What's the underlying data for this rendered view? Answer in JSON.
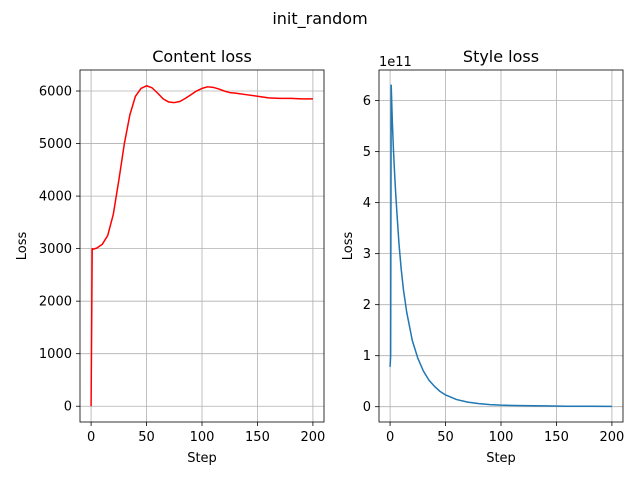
{
  "figure": {
    "suptitle": "init_random"
  },
  "chart_data": [
    {
      "type": "line",
      "title": "Content loss",
      "xlabel": "Step",
      "ylabel": "Loss",
      "xlim": [
        -10,
        210
      ],
      "ylim": [
        -300,
        6400
      ],
      "xticks": [
        0,
        50,
        100,
        150,
        200
      ],
      "yticks": [
        0,
        1000,
        2000,
        3000,
        4000,
        5000,
        6000
      ],
      "grid": true,
      "offset_text": "",
      "series": [
        {
          "color": "#ff0000",
          "x": [
            0,
            1,
            2,
            5,
            10,
            15,
            20,
            25,
            30,
            35,
            40,
            45,
            50,
            55,
            60,
            65,
            70,
            75,
            80,
            85,
            90,
            95,
            100,
            105,
            110,
            115,
            120,
            125,
            130,
            140,
            150,
            160,
            170,
            180,
            190,
            200
          ],
          "y": [
            0,
            3000,
            2990,
            3010,
            3080,
            3250,
            3650,
            4300,
            5000,
            5550,
            5900,
            6050,
            6100,
            6060,
            5960,
            5850,
            5790,
            5780,
            5800,
            5860,
            5930,
            6000,
            6050,
            6080,
            6070,
            6040,
            6000,
            5970,
            5960,
            5930,
            5900,
            5870,
            5860,
            5860,
            5850,
            5850
          ]
        }
      ]
    },
    {
      "type": "line",
      "title": "Style loss",
      "xlabel": "Step",
      "ylabel": "Loss",
      "xlim": [
        -10,
        210
      ],
      "ylim": [
        -0.3,
        6.6
      ],
      "xticks": [
        0,
        50,
        100,
        150,
        200
      ],
      "yticks": [
        0,
        1,
        2,
        3,
        4,
        5,
        6
      ],
      "grid": true,
      "offset_text": "1e11",
      "series": [
        {
          "color": "#1f77b4",
          "x": [
            0,
            0.5,
            1,
            2,
            3,
            4,
            5,
            6,
            8,
            10,
            12,
            15,
            20,
            25,
            30,
            35,
            40,
            45,
            50,
            60,
            70,
            80,
            90,
            100,
            120,
            140,
            160,
            180,
            200
          ],
          "y": [
            0.78,
            1.0,
            6.3,
            5.6,
            5.05,
            4.6,
            4.2,
            3.85,
            3.2,
            2.7,
            2.3,
            1.85,
            1.3,
            0.95,
            0.7,
            0.52,
            0.4,
            0.3,
            0.23,
            0.14,
            0.09,
            0.06,
            0.04,
            0.03,
            0.02,
            0.015,
            0.01,
            0.008,
            0.006
          ]
        }
      ]
    }
  ]
}
